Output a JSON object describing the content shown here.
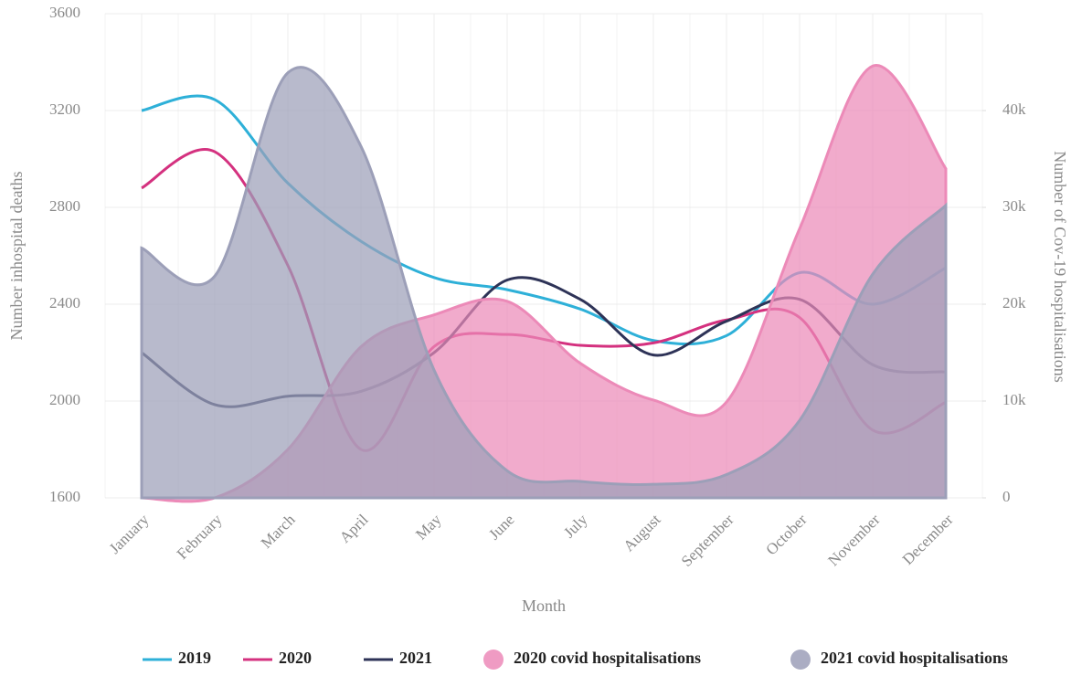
{
  "chart_data": {
    "type": "line",
    "x_label": "Month",
    "y_label": "Number inhospital deaths",
    "y2_label": "Number of Cov-19 hospitalisations",
    "categories": [
      "January",
      "February",
      "March",
      "April",
      "May",
      "June",
      "July",
      "August",
      "September",
      "October",
      "November",
      "December"
    ],
    "ylim": [
      1600,
      3600
    ],
    "yticks": [
      1600,
      2000,
      2400,
      2800,
      3200,
      3600
    ],
    "y2lim": [
      0,
      50000
    ],
    "y2ticks": [
      0,
      {
        "value": 10000,
        "label": "10k"
      },
      {
        "value": 20000,
        "label": "20k"
      },
      {
        "value": 30000,
        "label": "30k"
      },
      {
        "value": 40000,
        "label": "40k"
      }
    ],
    "grid": true,
    "legend": "bottom",
    "series": [
      {
        "name": "2019",
        "color": "#2eb0d8",
        "type": "line",
        "values": [
          3200,
          3245,
          2900,
          2660,
          2510,
          2460,
          2380,
          2250,
          2270,
          2530,
          2400,
          2550
        ]
      },
      {
        "name": "2020",
        "color": "#d4317f",
        "type": "line",
        "values": [
          2880,
          3030,
          2560,
          1800,
          2225,
          2275,
          2230,
          2240,
          2335,
          2345,
          1880,
          1995
        ]
      },
      {
        "name": "2021",
        "color": "#2e3357",
        "type": "line",
        "values": [
          2200,
          1985,
          2020,
          2040,
          2200,
          2500,
          2420,
          2190,
          2330,
          2420,
          2150,
          2120
        ]
      },
      {
        "name": "2020 covid hospitalisations",
        "color": "#ec8ab8",
        "type": "area",
        "axis": "y2",
        "values": [
          0,
          0,
          5000,
          15600,
          18900,
          20300,
          13900,
          10100,
          9900,
          27800,
          44600,
          34000
        ]
      },
      {
        "name": "2021 covid hospitalisations",
        "color": "#9c9fb8",
        "type": "area",
        "axis": "y2",
        "values": [
          25800,
          22900,
          43900,
          36300,
          13200,
          2800,
          1700,
          1400,
          2400,
          8000,
          23100,
          30200
        ]
      }
    ]
  }
}
